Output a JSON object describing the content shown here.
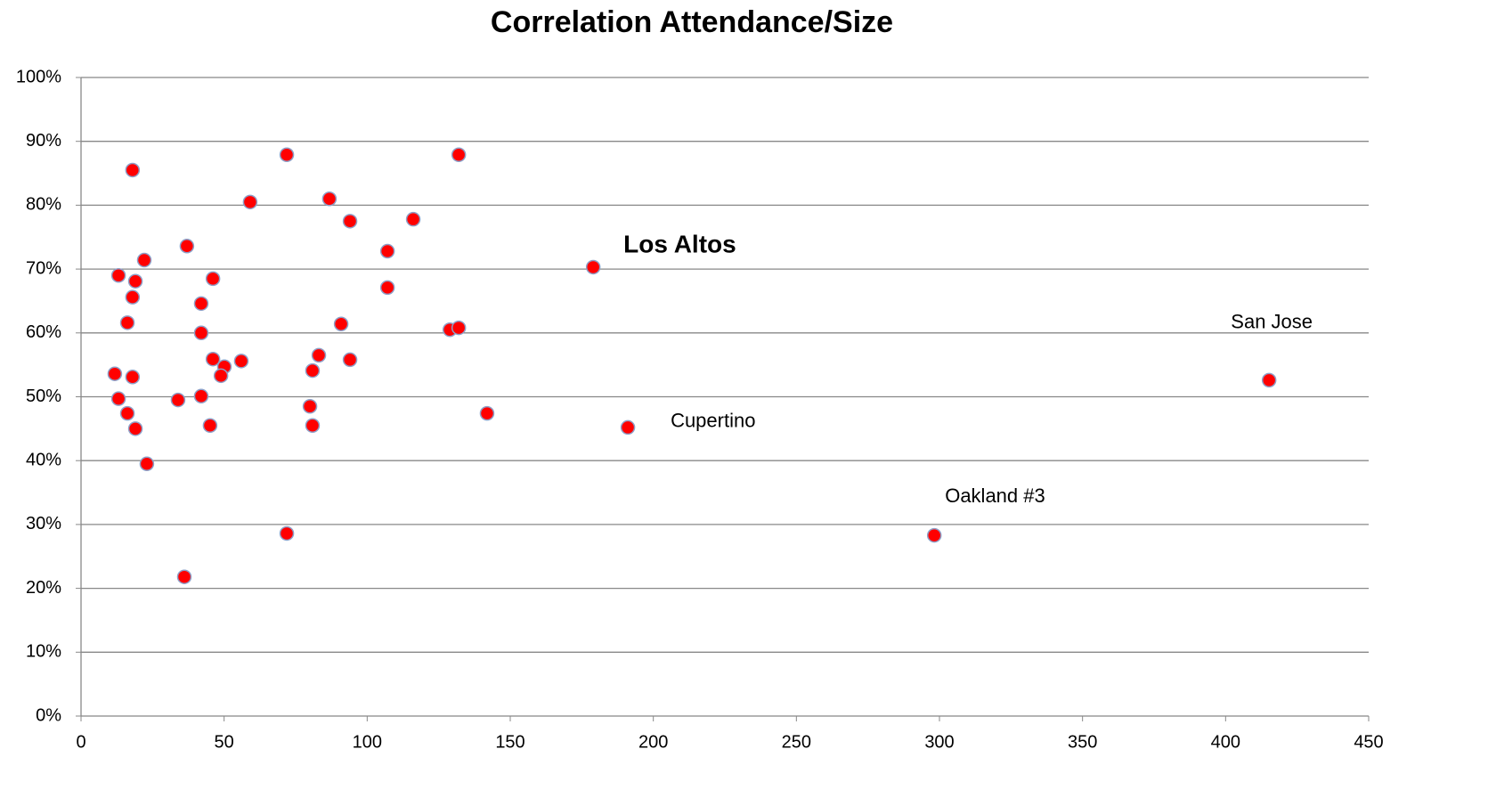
{
  "chart_data": {
    "type": "scatter",
    "title": "Correlation Attendance/Size",
    "x": [
      18.0,
      71.9,
      132,
      59.1,
      86.8,
      94.0,
      116.1,
      37.0,
      22.1,
      107.1,
      179.0,
      13.1,
      19.0,
      46.1,
      18.0,
      107.1,
      42.0,
      16.2,
      90.9,
      128.9,
      132,
      42.0,
      83.1,
      46.1,
      56.0,
      94.0,
      50.1,
      80.9,
      11.8,
      18.0,
      48.9,
      415.2,
      42.0,
      13.1,
      33.9,
      80.0,
      16.2,
      141.9,
      19.0,
      45.1,
      80.9,
      191.1,
      23.0,
      71.9,
      298.2,
      36.1
    ],
    "values": [
      85.5,
      87.9,
      87.9,
      80.5,
      81.0,
      77.5,
      77.8,
      73.6,
      71.4,
      72.8,
      70.3,
      69.0,
      68.1,
      68.5,
      65.6,
      67.1,
      64.6,
      61.6,
      61.4,
      60.5,
      60.8,
      60.0,
      56.5,
      55.9,
      55.6,
      55.8,
      54.7,
      54.1,
      53.6,
      53.1,
      53.3,
      52.6,
      50.1,
      49.7,
      49.5,
      48.5,
      47.4,
      47.4,
      45.0,
      45.5,
      45.5,
      45.2,
      39.5,
      28.6,
      28.3,
      21.8
    ],
    "color": "#ff0000",
    "edge_color": "#8ea0c8",
    "xlim": [
      0,
      450
    ],
    "xticks": [
      0,
      50,
      100,
      150,
      200,
      250,
      300,
      350,
      400,
      450
    ],
    "ylim": [
      0,
      100
    ],
    "yticks": [
      {
        "value": 0,
        "label": "0%"
      },
      {
        "value": 10,
        "label": "10%"
      },
      {
        "value": 20,
        "label": "20%"
      },
      {
        "value": 30,
        "label": "30%"
      },
      {
        "value": 40,
        "label": "40%"
      },
      {
        "value": 50,
        "label": "50%"
      },
      {
        "value": 60,
        "label": "60%"
      },
      {
        "value": 70,
        "label": "70%"
      },
      {
        "value": 80,
        "label": "80%"
      },
      {
        "value": 90,
        "label": "90%"
      },
      {
        "value": 100,
        "label": "100%"
      }
    ],
    "grid": true,
    "annotations": [
      {
        "text": "Los Altos",
        "x": 179.0,
        "y": 70.3,
        "bold": true
      },
      {
        "text": "Cupertino",
        "x": 191.1,
        "y": 45.2
      },
      {
        "text": "Oakland #3",
        "x": 298.2,
        "y": 28.3
      },
      {
        "text": "San Jose",
        "x": 415.2,
        "y": 52.6
      }
    ]
  }
}
